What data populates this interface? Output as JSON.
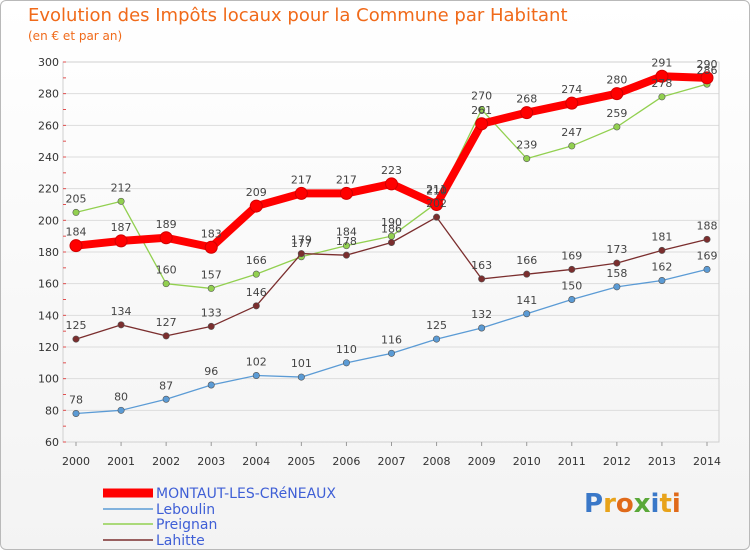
{
  "title": "Evolution des Impôts locaux pour la Commune par Habitant",
  "subtitle": "(en € et par an)",
  "logo": [
    "P",
    "r",
    "o",
    "x",
    "i",
    "t",
    "i"
  ],
  "logo_colors": [
    "#3a78c8",
    "#e8a31a",
    "#e06a1a",
    "#5aa838",
    "#3a78c8",
    "#e8a31a",
    "#e06a1a"
  ],
  "chart_data": {
    "type": "line",
    "title": "Evolution des Impôts locaux pour la Commune par Habitant",
    "subtitle": "(en € et par an)",
    "xlabel": "",
    "ylabel": "",
    "x": [
      "2000",
      "2001",
      "2002",
      "2003",
      "2004",
      "2005",
      "2006",
      "2007",
      "2008",
      "2009",
      "2010",
      "2011",
      "2012",
      "2013",
      "2014"
    ],
    "ylim": [
      60,
      300
    ],
    "yticks": [
      60,
      80,
      100,
      120,
      140,
      160,
      180,
      200,
      220,
      240,
      260,
      280,
      300
    ],
    "grid": "horizontal",
    "legend": "bottom-left",
    "series": [
      {
        "name": "MONTAUT-LES-CRéNEAUX",
        "color": "#ff0000",
        "values": [
          184,
          187,
          189,
          183,
          209,
          217,
          217,
          223,
          210,
          261,
          268,
          274,
          280,
          291,
          290
        ],
        "labels": [
          "184",
          "187",
          "189",
          "183",
          "209",
          "217",
          "217",
          "223",
          "210",
          "261",
          "268",
          "274",
          "280",
          "291",
          "290"
        ]
      },
      {
        "name": "Leboulin",
        "color": "#5b9bd5",
        "values": [
          78,
          80,
          87,
          96,
          102,
          101,
          110,
          116,
          125,
          132,
          141,
          150,
          158,
          162,
          169
        ],
        "labels": [
          "78",
          "80",
          "87",
          "96",
          "102",
          "101",
          "110",
          "116",
          "125",
          "132",
          "141",
          "150",
          "158",
          "162",
          "169"
        ]
      },
      {
        "name": "Preignan",
        "color": "#92d050",
        "values": [
          205,
          212,
          160,
          157,
          166,
          177,
          184,
          190,
          211,
          270,
          239,
          247,
          259,
          278,
          286
        ],
        "labels": [
          "205",
          "212",
          "160",
          "157",
          "166",
          "177",
          "184",
          "190",
          "211",
          "270",
          "239",
          "247",
          "259",
          "278",
          "286"
        ]
      },
      {
        "name": "Lahitte",
        "color": "#7b2e2e",
        "values": [
          125,
          134,
          127,
          133,
          146,
          179,
          178,
          186,
          202,
          163,
          166,
          169,
          173,
          181,
          188
        ],
        "labels": [
          "125",
          "134",
          "127",
          "133",
          "146",
          "179",
          "178",
          "186",
          "202",
          "163",
          "166",
          "169",
          "173",
          "181",
          "188"
        ]
      }
    ]
  }
}
